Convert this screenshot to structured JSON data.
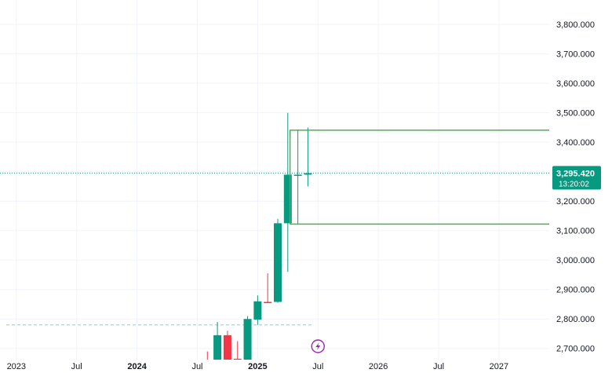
{
  "chart_data": {
    "type": "candlestick",
    "interval": "monthly",
    "y_axis": {
      "ticks": [
        3800,
        3700,
        3600,
        3500,
        3400,
        3300,
        3200,
        3100,
        3000,
        2900,
        2800,
        2700
      ],
      "tick_labels": [
        "3,800.000",
        "3,700.000",
        "3,600.000",
        "3,500.000",
        "3,400.000",
        "3,300.000",
        "3,200.000",
        "3,100.000",
        "3,000.000",
        "2,900.000",
        "2,800.000",
        "2,700.000"
      ],
      "ylim": [
        2630,
        3875
      ]
    },
    "x_axis": {
      "labels": [
        "2023",
        "Jul",
        "2024",
        "Jul",
        "2025",
        "Jul",
        "2026",
        "Jul",
        "2027"
      ],
      "label_dates": [
        "2023-01",
        "2023-07",
        "2024-01",
        "2024-07",
        "2025-01",
        "2025-07",
        "2026-01",
        "2026-07",
        "2027-01"
      ],
      "bold_labels": [
        "2024",
        "2025"
      ],
      "xlim": [
        "2022-12",
        "2027-06"
      ]
    },
    "candles": [
      {
        "month": "2024-08",
        "open": 2660,
        "high": 2690,
        "low": 2640,
        "close": 2640
      },
      {
        "month": "2024-09",
        "open": 2660,
        "high": 2790,
        "low": 2640,
        "close": 2745
      },
      {
        "month": "2024-10",
        "open": 2745,
        "high": 2760,
        "low": 2630,
        "close": 2650
      },
      {
        "month": "2024-11",
        "open": 2665,
        "high": 2725,
        "low": 2630,
        "close": 2640
      },
      {
        "month": "2024-12",
        "open": 2640,
        "high": 2810,
        "low": 2630,
        "close": 2800
      },
      {
        "month": "2025-01",
        "open": 2798,
        "high": 2880,
        "low": 2780,
        "close": 2860
      },
      {
        "month": "2025-02",
        "open": 2858,
        "high": 2955,
        "low": 2855,
        "close": 2855
      },
      {
        "month": "2025-03",
        "open": 2858,
        "high": 3140,
        "low": 2855,
        "close": 3125
      },
      {
        "month": "2025-04",
        "open": 3125,
        "high": 3500,
        "low": 2960,
        "close": 3290
      },
      {
        "month": "2025-05",
        "open": 3290,
        "high": 3440,
        "low": 3120,
        "close": 3290
      },
      {
        "month": "2025-06",
        "open": 3290,
        "high": 3450,
        "low": 3250,
        "close": 3295
      }
    ],
    "colors": {
      "up": "#089981",
      "down": "#f23645",
      "level_line": "#4caf50",
      "price_line": "#089981"
    },
    "horizontal_levels": [
      {
        "value": 3441.196,
        "label": "3,441.196",
        "from_month": "2025-05"
      },
      {
        "value": 3122.119,
        "label": "3,122.119",
        "from_month": "2025-05"
      }
    ],
    "current_price": {
      "value": 3295.42,
      "label": "3,295.420",
      "countdown": "13:20:02"
    },
    "dashed_level": {
      "value": 2780,
      "from_month": "2022-12",
      "to_month": "2025-07",
      "color": "#a8d5cc"
    },
    "event_icon": {
      "name": "lightning-icon",
      "month": "2025-07",
      "color": "#9c27b0"
    }
  }
}
